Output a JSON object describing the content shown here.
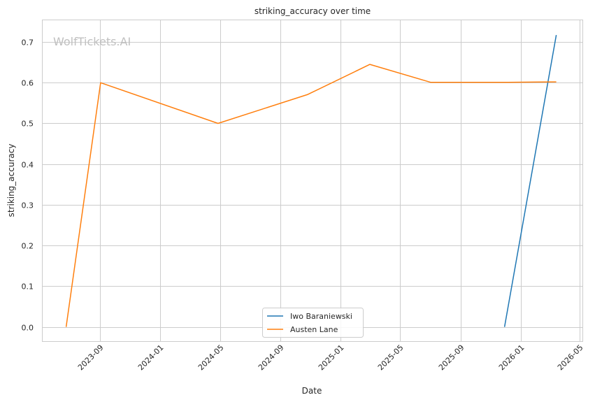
{
  "watermark": "WolfTickets.AI",
  "chart_data": {
    "type": "line",
    "title": "striking_accuracy over time",
    "xlabel": "Date",
    "ylabel": "striking_accuracy",
    "x_axis_type": "date",
    "xlim": [
      "2023-05-06",
      "2026-05-06"
    ],
    "ylim": [
      -0.035,
      0.755
    ],
    "x_ticks": [
      "2023-09",
      "2024-01",
      "2024-05",
      "2024-09",
      "2025-01",
      "2025-05",
      "2025-09",
      "2026-01",
      "2026-05"
    ],
    "y_ticks": [
      "0.0",
      "0.1",
      "0.2",
      "0.3",
      "0.4",
      "0.5",
      "0.6",
      "0.7"
    ],
    "grid": true,
    "legend": "bottom-center",
    "series": [
      {
        "name": "Iwo Baraniewski",
        "color": "#1f77b4",
        "points": [
          {
            "x": "2025-11-29",
            "y": 0.0
          },
          {
            "x": "2026-03-14",
            "y": 0.717
          }
        ]
      },
      {
        "name": "Austen Lane",
        "color": "#ff7f0e",
        "points": [
          {
            "x": "2023-06-24",
            "y": 0.0
          },
          {
            "x": "2023-09-02",
            "y": 0.6
          },
          {
            "x": "2024-04-27",
            "y": 0.5
          },
          {
            "x": "2024-10-26",
            "y": 0.571
          },
          {
            "x": "2025-03-01",
            "y": 0.645
          },
          {
            "x": "2025-07-02",
            "y": 0.601
          },
          {
            "x": "2025-12-06",
            "y": 0.601
          },
          {
            "x": "2026-03-14",
            "y": 0.602
          }
        ]
      }
    ]
  }
}
